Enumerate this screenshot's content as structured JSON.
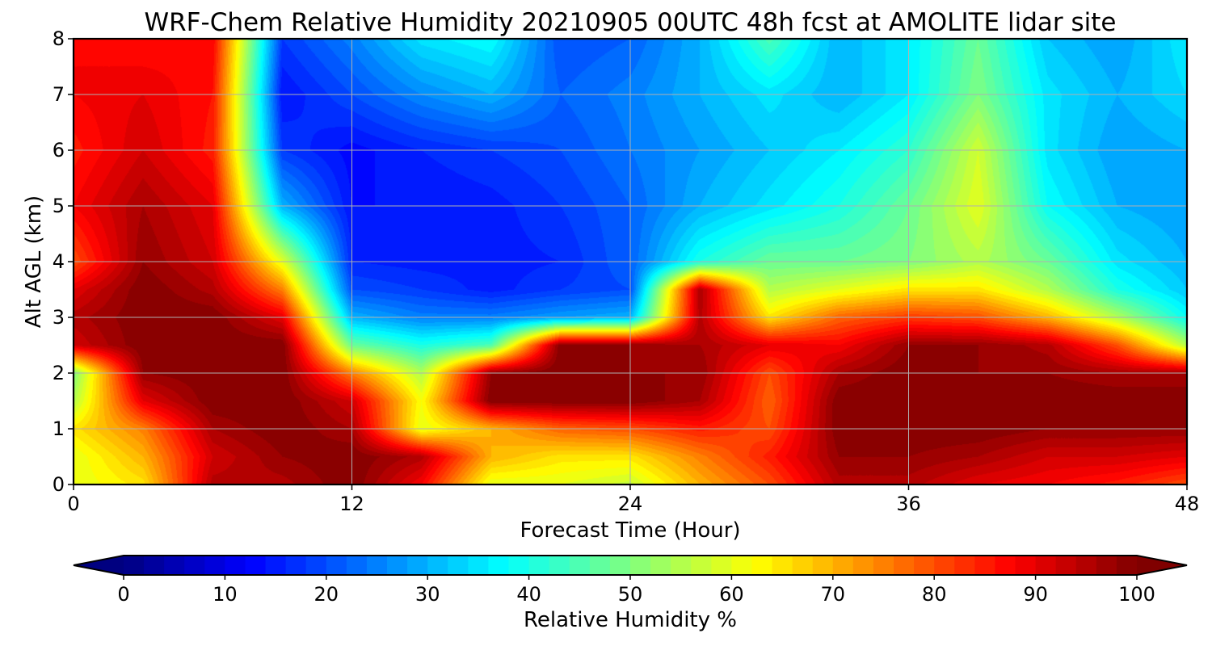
{
  "chart_data": {
    "type": "heatmap",
    "title": "WRF-Chem Relative Humidity 20210905 00UTC 48h fcst at AMOLITE lidar site",
    "xlabel": "Forecast Time (Hour)",
    "ylabel": "Alt AGL (km)",
    "xlim": [
      0,
      48
    ],
    "ylim": [
      0,
      8
    ],
    "x_ticks": [
      0,
      12,
      24,
      36,
      48
    ],
    "y_ticks": [
      0,
      1,
      2,
      3,
      4,
      5,
      6,
      7,
      8
    ],
    "grid": true,
    "colormap": "jet",
    "colorbar": {
      "label": "Relative Humidity %",
      "orientation": "horizontal",
      "placement": "bottom",
      "extend": "both",
      "min": 0,
      "max": 100,
      "ticks": [
        0,
        10,
        20,
        30,
        40,
        50,
        60,
        70,
        80,
        90,
        100
      ]
    },
    "x": [
      0,
      3,
      6,
      9,
      12,
      15,
      18,
      21,
      24,
      27,
      30,
      33,
      36,
      39,
      42,
      45,
      48
    ],
    "y": [
      0,
      0.5,
      1,
      1.5,
      2,
      2.5,
      3,
      3.5,
      4,
      5,
      6,
      7,
      8
    ],
    "z": [
      [
        60,
        65,
        95,
        95,
        100,
        88,
        60,
        60,
        57,
        70,
        80,
        95,
        95,
        90,
        88,
        85,
        80
      ],
      [
        60,
        70,
        92,
        98,
        100,
        95,
        70,
        65,
        65,
        75,
        85,
        98,
        98,
        96,
        92,
        92,
        90
      ],
      [
        65,
        75,
        96,
        100,
        96,
        60,
        70,
        78,
        80,
        85,
        80,
        100,
        100,
        100,
        98,
        98,
        98
      ],
      [
        55,
        90,
        100,
        100,
        92,
        62,
        100,
        100,
        100,
        96,
        78,
        100,
        100,
        100,
        100,
        100,
        100
      ],
      [
        50,
        98,
        100,
        100,
        75,
        55,
        98,
        100,
        98,
        98,
        80,
        96,
        100,
        98,
        98,
        96,
        96
      ],
      [
        92,
        100,
        100,
        100,
        48,
        40,
        45,
        100,
        98,
        96,
        90,
        88,
        98,
        98,
        95,
        80,
        55
      ],
      [
        95,
        100,
        100,
        90,
        30,
        25,
        25,
        28,
        30,
        95,
        65,
        78,
        82,
        80,
        70,
        55,
        38
      ],
      [
        90,
        100,
        95,
        75,
        20,
        18,
        15,
        18,
        20,
        96,
        55,
        60,
        65,
        65,
        55,
        40,
        32
      ],
      [
        80,
        98,
        92,
        60,
        16,
        15,
        15,
        16,
        22,
        40,
        48,
        48,
        50,
        55,
        48,
        35,
        30
      ],
      [
        88,
        96,
        90,
        30,
        14,
        14,
        15,
        18,
        22,
        30,
        35,
        40,
        48,
        60,
        38,
        30,
        28
      ],
      [
        85,
        92,
        85,
        18,
        13,
        16,
        18,
        20,
        24,
        28,
        32,
        36,
        42,
        58,
        35,
        28,
        30
      ],
      [
        88,
        90,
        86,
        14,
        20,
        26,
        30,
        22,
        25,
        30,
        35,
        30,
        36,
        50,
        35,
        30,
        34
      ],
      [
        88,
        86,
        88,
        18,
        25,
        35,
        38,
        20,
        22,
        30,
        45,
        30,
        36,
        48,
        32,
        28,
        36
      ]
    ]
  }
}
